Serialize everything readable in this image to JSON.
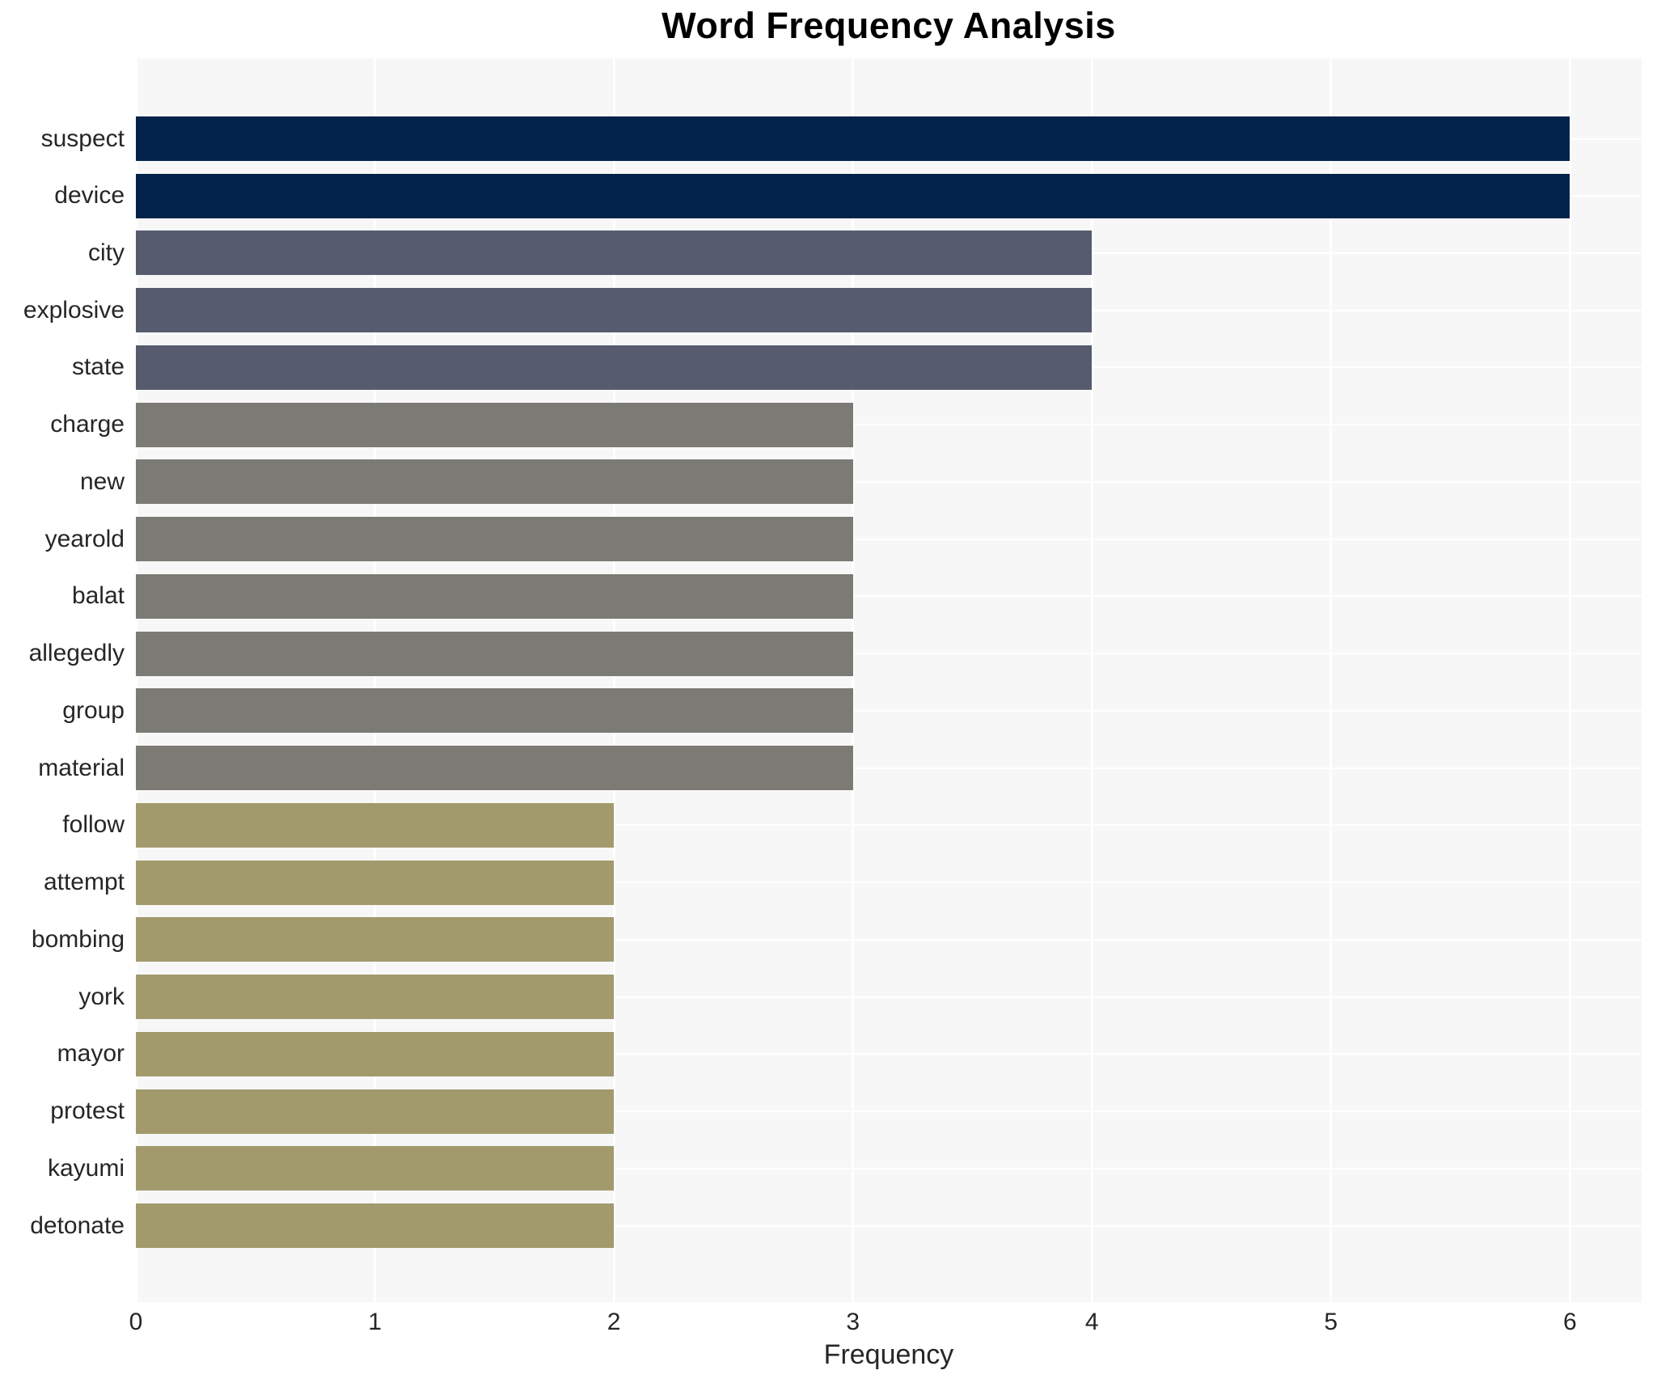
{
  "chart_data": {
    "type": "bar",
    "orientation": "horizontal",
    "title": "Word Frequency Analysis",
    "xlabel": "Frequency",
    "ylabel": "",
    "categories": [
      "suspect",
      "device",
      "city",
      "explosive",
      "state",
      "charge",
      "new",
      "yearold",
      "balat",
      "allegedly",
      "group",
      "material",
      "follow",
      "attempt",
      "bombing",
      "york",
      "mayor",
      "protest",
      "kayumi",
      "detonate"
    ],
    "values": [
      6,
      6,
      4,
      4,
      4,
      3,
      3,
      3,
      3,
      3,
      3,
      3,
      2,
      2,
      2,
      2,
      2,
      2,
      2,
      2
    ],
    "xticks": [
      0,
      1,
      2,
      3,
      4,
      5,
      6
    ],
    "xlim": [
      0,
      6.3
    ],
    "grid": true,
    "legend_position": "none",
    "colors": {
      "value_6": "#03234a",
      "value_4": "#565c6e",
      "value_3": "#7b7a74",
      "value_2": "#a29a6d",
      "plot_background": "#f7f7f7",
      "gridline": "#ffffff",
      "text": "#262626",
      "title_text": "#000000"
    }
  }
}
